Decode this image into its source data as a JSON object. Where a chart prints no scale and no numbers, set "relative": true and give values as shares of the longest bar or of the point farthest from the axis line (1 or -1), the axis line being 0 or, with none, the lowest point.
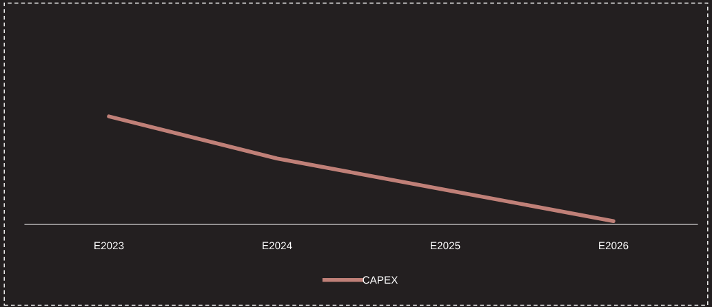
{
  "chart_data": {
    "type": "line",
    "relative": true,
    "categories": [
      "E2023",
      "E2024",
      "E2025",
      "E2026"
    ],
    "series": [
      {
        "name": "CAPEX",
        "color": "#c08078",
        "values": [
          1,
          0.61,
          0.32,
          0.03
        ]
      }
    ],
    "legend": "bottom",
    "grid": false,
    "marker": "none",
    "line_style": "solid"
  }
}
